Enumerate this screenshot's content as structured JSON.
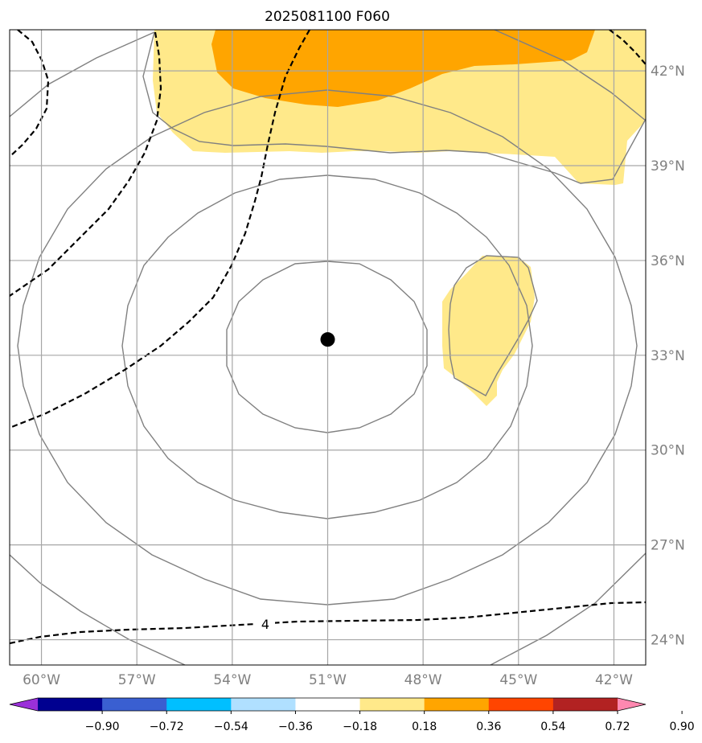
{
  "title": "2025081100 F060",
  "map": {
    "lon_range": [
      -61,
      -41
    ],
    "lat_range": [
      23.2,
      43.3
    ],
    "grid_lons": [
      -60,
      -57,
      -54,
      -51,
      -48,
      -45,
      -42
    ],
    "grid_lats": [
      24,
      27,
      30,
      33,
      36,
      39,
      42
    ],
    "lon_labels": [
      "60°W",
      "57°W",
      "54°W",
      "51°W",
      "48°W",
      "45°W",
      "42°W"
    ],
    "lat_labels": [
      "24°N",
      "27°N",
      "30°N",
      "33°N",
      "36°N",
      "39°N",
      "42°N"
    ],
    "center_marker": {
      "lon": -51,
      "lat": 33.5,
      "color": "#000000"
    },
    "contour_label": "4",
    "shading_colors": {
      "light": "#ffe98a",
      "medium": "#ffa500"
    },
    "solid_contour_color": "#808080",
    "dashed_contour_color": "#000000"
  },
  "colorbar": {
    "colors": [
      "#9b30d9",
      "#000090",
      "#3a5fd1",
      "#00bfff",
      "#b0e0ff",
      "#ffffff",
      "#ffe98a",
      "#ffa500",
      "#ff4500",
      "#b22222",
      "#ff88b0"
    ],
    "tick_labels": [
      "−0.90",
      "−0.72",
      "−0.54",
      "−0.36",
      "−0.18",
      "0.18",
      "0.36",
      "0.54",
      "0.72",
      "0.90"
    ],
    "extend": "both"
  }
}
